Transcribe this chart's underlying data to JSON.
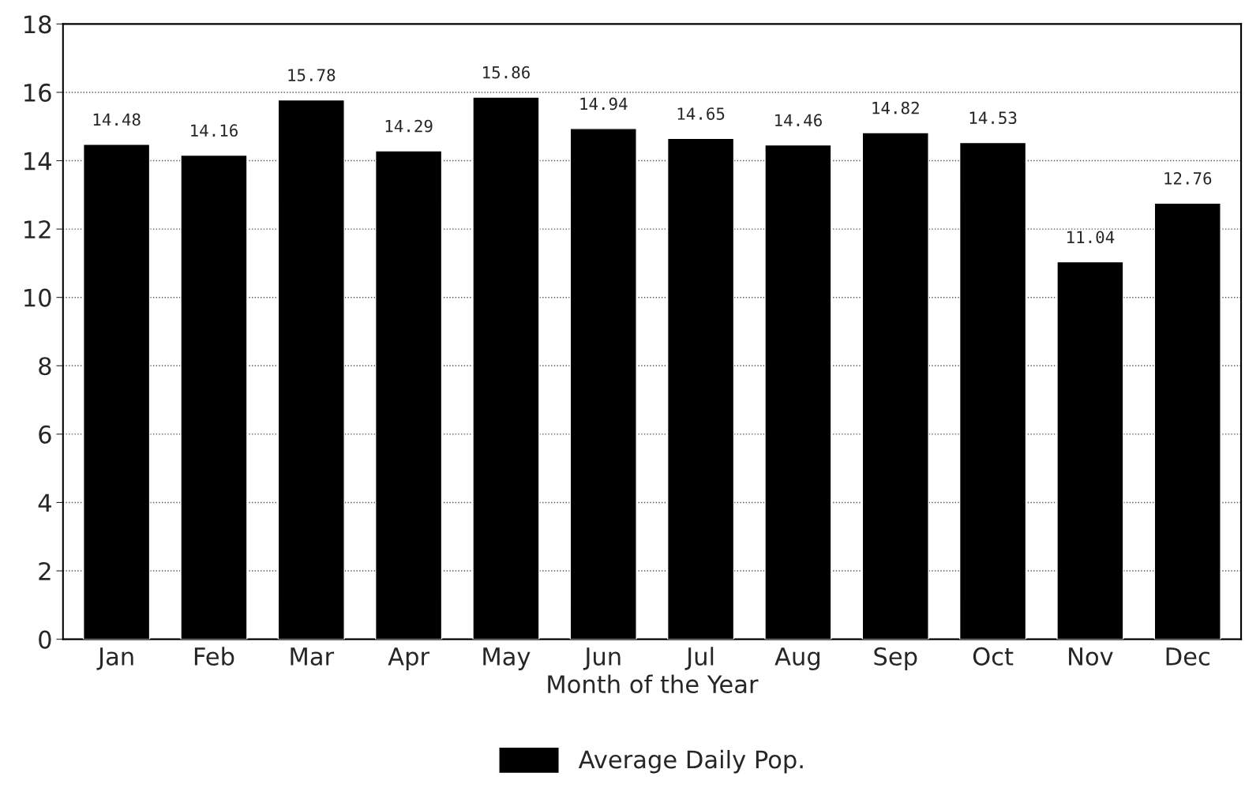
{
  "chart_data": {
    "type": "bar",
    "xlabel": "Month of the Year",
    "categories": [
      "Jan",
      "Feb",
      "Mar",
      "Apr",
      "May",
      "Jun",
      "Jul",
      "Aug",
      "Sep",
      "Oct",
      "Nov",
      "Dec"
    ],
    "series": [
      {
        "name": "Average Daily Pop.",
        "color": "#000000",
        "values": [
          14.48,
          14.16,
          15.78,
          14.29,
          15.86,
          14.94,
          14.65,
          14.46,
          14.82,
          14.53,
          11.04,
          12.76
        ]
      }
    ],
    "ylim": [
      0,
      18
    ],
    "yticks": [
      0,
      2,
      4,
      6,
      8,
      10,
      12,
      14,
      16,
      18
    ],
    "data_labels": true,
    "grid": "y",
    "legend": "bottom"
  }
}
